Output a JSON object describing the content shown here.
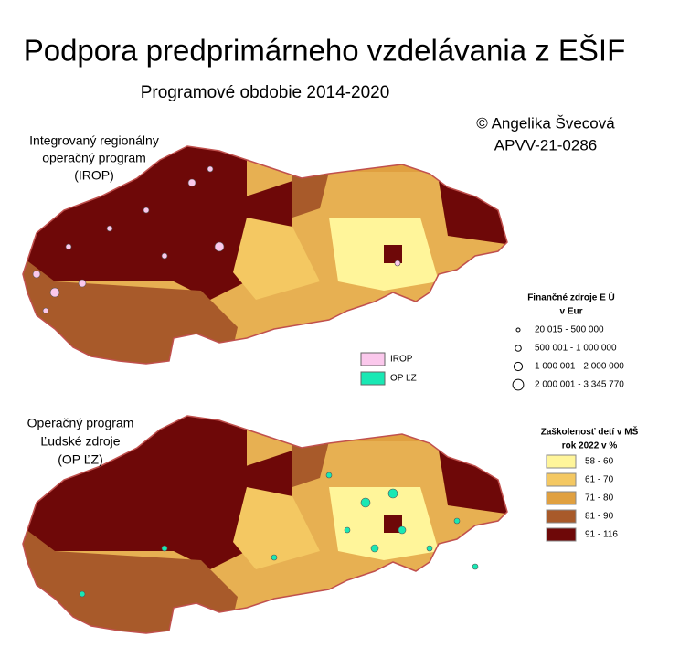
{
  "title": "Podpora predprimárneho vzdelávania z EŠIF",
  "subtitle": "Programové obdobie  2014-2020",
  "credit": [
    "© Angelika Švecová",
    "APVV-21-0286"
  ],
  "maps": [
    {
      "label": [
        "Integrovaný regionálny",
        "operačný program",
        "(IROP)"
      ]
    },
    {
      "label": [
        "Operačný program",
        "Ľudské zdroje",
        "(OP ĽZ)"
      ]
    }
  ],
  "funding_legend": {
    "title": [
      "Finančné zdroje E Ú",
      "v Eur"
    ],
    "items": [
      "20 015 - 500 000",
      "500 001 - 1 000 000",
      "1 000 001 - 2 000 000",
      "2 000 001 - 3 345 770"
    ]
  },
  "program_legend": [
    {
      "label": "IROP",
      "color": "#fbc8ec"
    },
    {
      "label": "OP ĽZ",
      "color": "#19e8b4"
    }
  ],
  "attendance_legend": {
    "title": [
      "Zaškolenosť detí v MŠ",
      "rok 2022 v %"
    ],
    "items": [
      {
        "label": "58 - 60",
        "color": "#fff59a"
      },
      {
        "label": "61 - 70",
        "color": "#f4c862"
      },
      {
        "label": "71 - 80",
        "color": "#e0a040"
      },
      {
        "label": "81 - 90",
        "color": "#a85a2a"
      },
      {
        "label": "91 - 116",
        "color": "#6e0808"
      }
    ]
  }
}
